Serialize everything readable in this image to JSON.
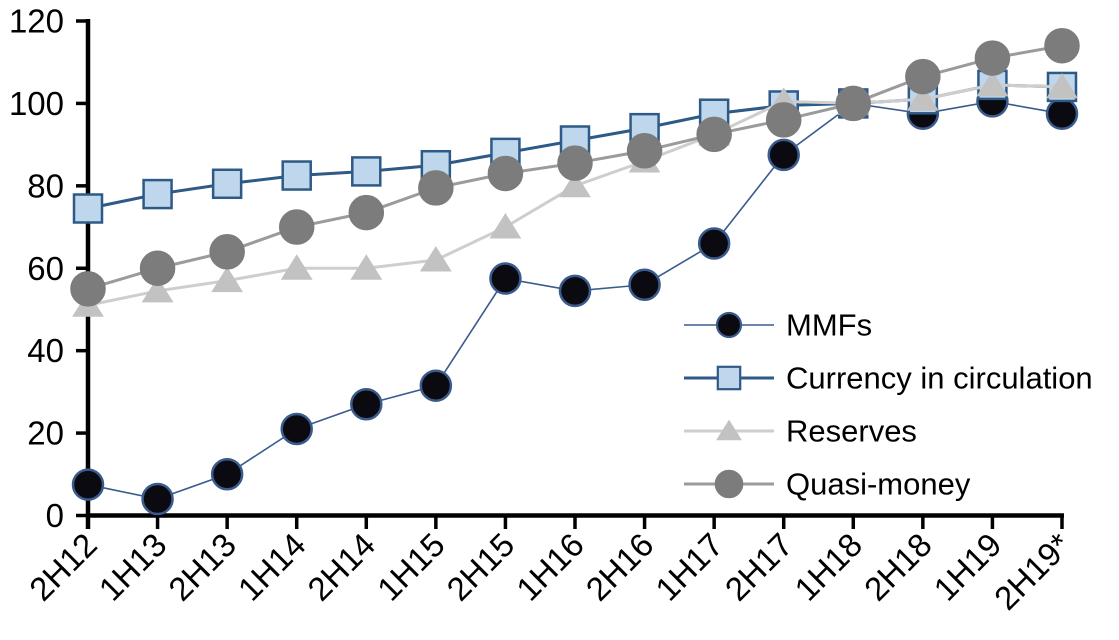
{
  "chart_data": {
    "type": "line",
    "title": "",
    "xlabel": "",
    "ylabel": "",
    "categories": [
      "2H12",
      "1H13",
      "2H13",
      "1H14",
      "2H14",
      "1H15",
      "2H15",
      "1H16",
      "2H16",
      "1H17",
      "2H17",
      "1H18",
      "2H18",
      "1H19",
      "2H19*"
    ],
    "series": [
      {
        "name": "MMFs",
        "marker": "circle",
        "marker_size": 30,
        "marker_fill": "#0a0a10",
        "marker_stroke": "#3a5b8e",
        "line_color": "#3a5b8e",
        "line_width": 1.6,
        "values": [
          7.5,
          4,
          10,
          21,
          27,
          31.5,
          57.5,
          54.5,
          56,
          66,
          87.5,
          100,
          97.5,
          100.5,
          97.5
        ]
      },
      {
        "name": "Currency in circulation",
        "marker": "square",
        "marker_size": 28,
        "marker_fill": "#bfd7ec",
        "marker_stroke": "#2d5a87",
        "line_color": "#2d5a87",
        "line_width": 3,
        "values": [
          74.5,
          78,
          80.5,
          82.5,
          83.5,
          85,
          88,
          91,
          94,
          97.5,
          99.5,
          100,
          101,
          104.5,
          104
        ]
      },
      {
        "name": "Reserves",
        "marker": "triangle",
        "marker_size": 30,
        "marker_fill": "#c2c2c2",
        "marker_stroke": "#c2c2c2",
        "line_color": "#cecece",
        "line_width": 3,
        "values": [
          51,
          54.5,
          57,
          60,
          60,
          62,
          70,
          80,
          86,
          92.5,
          100.5,
          100,
          101,
          104.5,
          104
        ]
      },
      {
        "name": "Quasi-money",
        "marker": "circle",
        "marker_size": 33,
        "marker_fill": "#7c7c7c",
        "marker_stroke": "#7c7c7c",
        "line_color": "#9b9b9b",
        "line_width": 3,
        "values": [
          55,
          60,
          64,
          70,
          73.5,
          79.5,
          83,
          85.5,
          88.5,
          92.5,
          96,
          100,
          106.5,
          111,
          114
        ]
      }
    ],
    "ylim": [
      0,
      120
    ],
    "yticks": [
      0,
      20,
      40,
      60,
      80,
      100,
      120
    ],
    "grid": false,
    "legend_position": "inside-right",
    "axis_color": "#000000",
    "background_color": "#ffffff"
  }
}
